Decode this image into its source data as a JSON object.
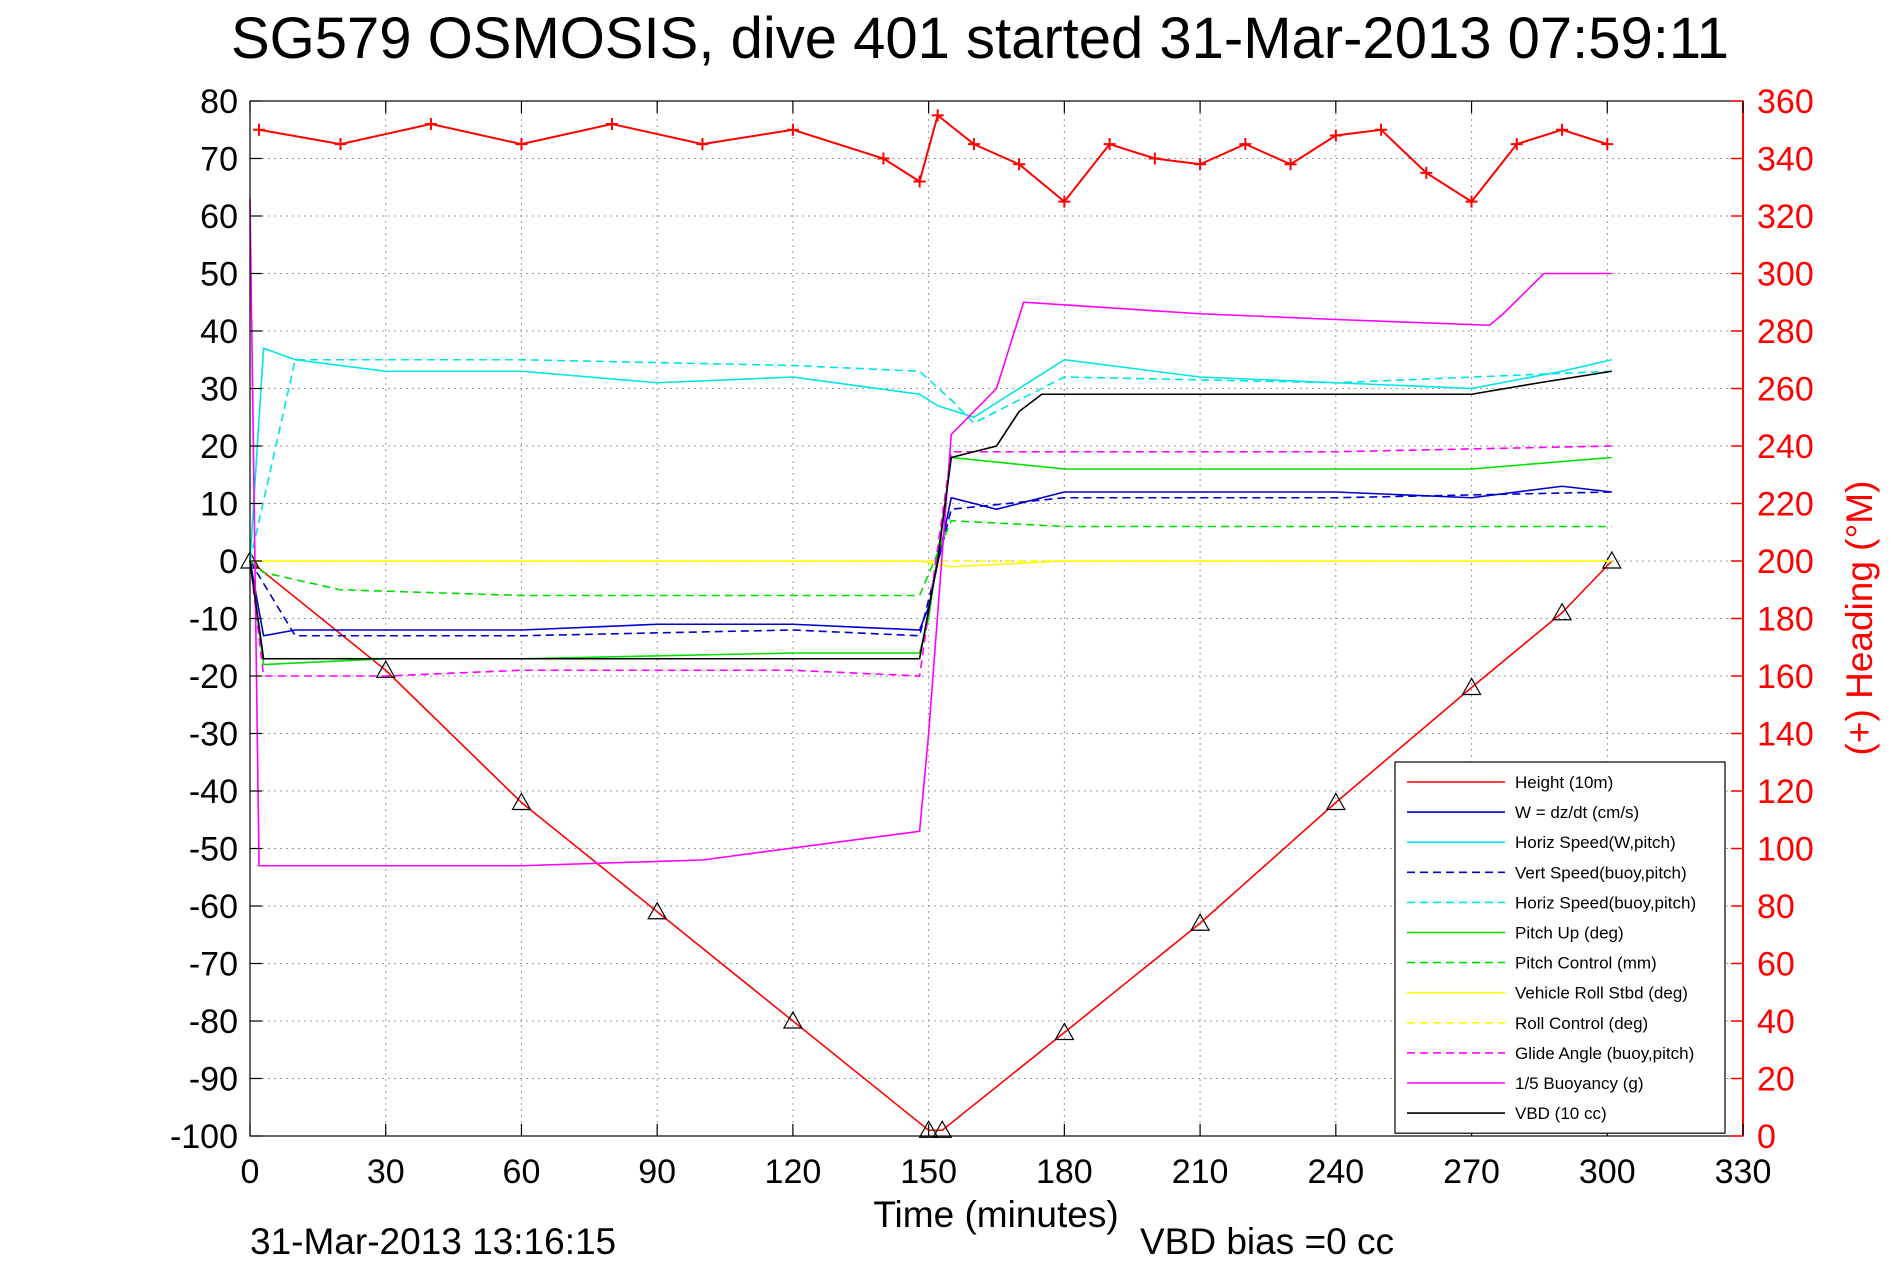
{
  "chart_data": {
    "type": "line",
    "title": "SG579 OSMOSIS, dive 401 started 31-Mar-2013 07:59:11",
    "xlabel": "Time (minutes)",
    "ylabel_right": "(+) Heading (°M)",
    "footer_left": "31-Mar-2013 13:16:15",
    "footer_right": "VBD bias =0 cc",
    "xlim": [
      0,
      330
    ],
    "ylim": [
      -100,
      80
    ],
    "ylim_right": [
      0,
      360
    ],
    "xticks": [
      "0",
      "30",
      "60",
      "90",
      "120",
      "150",
      "180",
      "210",
      "240",
      "270",
      "300",
      "330"
    ],
    "yticks": [
      "80",
      "70",
      "60",
      "50",
      "40",
      "30",
      "20",
      "10",
      "0",
      "-10",
      "-20",
      "-30",
      "-40",
      "-50",
      "-60",
      "-70",
      "-80",
      "-90",
      "-100"
    ],
    "yticks_right": [
      "360",
      "340",
      "320",
      "300",
      "280",
      "260",
      "240",
      "220",
      "200",
      "180",
      "160",
      "140",
      "120",
      "100",
      "80",
      "60",
      "40",
      "20",
      "0"
    ],
    "grid": true,
    "legend_position": "bottom-right",
    "series": [
      {
        "name": "Height (10m)",
        "color": "#ff0000",
        "style": "solid",
        "x": [
          0,
          30,
          60,
          90,
          120,
          150,
          153,
          180,
          210,
          240,
          270,
          290,
          301
        ],
        "y": [
          0,
          -19,
          -42,
          -61,
          -80,
          -99,
          -99,
          -82,
          -63,
          -42,
          -22,
          -9,
          0
        ]
      },
      {
        "name": "W = dz/dt (cm/s)",
        "color": "#0000cc",
        "style": "solid",
        "x": [
          0,
          3,
          10,
          30,
          60,
          90,
          120,
          148,
          150,
          155,
          165,
          180,
          210,
          240,
          270,
          290,
          301
        ],
        "y": [
          0,
          -13,
          -12,
          -12,
          -12,
          -11,
          -11,
          -12,
          -8,
          11,
          9,
          12,
          12,
          12,
          11,
          13,
          12
        ]
      },
      {
        "name": "Horiz Speed(W,pitch)",
        "color": "#00e5e5",
        "style": "solid",
        "x": [
          0,
          3,
          10,
          30,
          60,
          90,
          120,
          148,
          152,
          160,
          170,
          180,
          210,
          240,
          270,
          290,
          301
        ],
        "y": [
          0,
          37,
          35,
          33,
          33,
          31,
          32,
          29,
          27,
          25,
          30,
          35,
          32,
          31,
          30,
          33,
          35
        ]
      },
      {
        "name": "Vert Speed(buoy,pitch)",
        "color": "#0000cc",
        "style": "dashed",
        "x": [
          0,
          10,
          60,
          120,
          148,
          155,
          180,
          240,
          301
        ],
        "y": [
          0,
          -13,
          -13,
          -12,
          -13,
          9,
          11,
          11,
          12
        ]
      },
      {
        "name": "Horiz Speed(buoy,pitch)",
        "color": "#00e5e5",
        "style": "dashed",
        "x": [
          0,
          10,
          60,
          120,
          148,
          155,
          160,
          180,
          240,
          301
        ],
        "y": [
          0,
          35,
          35,
          34,
          33,
          28,
          24,
          32,
          31,
          33
        ]
      },
      {
        "name": "Pitch Up (deg)",
        "color": "#00e000",
        "style": "solid",
        "x": [
          0,
          3,
          30,
          60,
          120,
          148,
          150,
          155,
          180,
          210,
          240,
          270,
          301
        ],
        "y": [
          0,
          -18,
          -17,
          -17,
          -16,
          -16,
          -10,
          18,
          16,
          16,
          16,
          16,
          18
        ]
      },
      {
        "name": "Pitch Control (mm)",
        "color": "#00e000",
        "style": "dashed",
        "x": [
          0,
          3,
          20,
          60,
          120,
          148,
          155,
          180,
          240,
          301
        ],
        "y": [
          0,
          -2,
          -5,
          -6,
          -6,
          -6,
          7,
          6,
          6,
          6
        ]
      },
      {
        "name": "Vehicle Roll Stbd (deg)",
        "color": "#ffff00",
        "style": "solid",
        "x": [
          0,
          10,
          60,
          120,
          148,
          155,
          180,
          240,
          301
        ],
        "y": [
          0,
          0,
          0,
          0,
          0,
          -1,
          0,
          0,
          0
        ]
      },
      {
        "name": "Roll Control (deg)",
        "color": "#ffff00",
        "style": "dashed",
        "x": [
          0,
          10,
          60,
          120,
          148,
          155,
          180,
          240,
          301
        ],
        "y": [
          0,
          0,
          0,
          0,
          0,
          0,
          0,
          0,
          0
        ]
      },
      {
        "name": "Glide Angle (buoy,pitch)",
        "color": "#ff00ff",
        "style": "dashed",
        "x": [
          0,
          3,
          30,
          60,
          120,
          148,
          155,
          180,
          240,
          301
        ],
        "y": [
          0,
          -20,
          -20,
          -19,
          -19,
          -20,
          19,
          19,
          19,
          20
        ]
      },
      {
        "name": "1/5 Buoyancy (g)",
        "color": "#ff00ff",
        "style": "solid",
        "x": [
          0,
          2,
          30,
          60,
          100,
          148,
          150,
          155,
          165,
          171,
          210,
          240,
          274,
          277,
          286,
          301
        ],
        "y": [
          63,
          -53,
          -53,
          -53,
          -52,
          -47,
          -30,
          22,
          30,
          45,
          43,
          42,
          41,
          43,
          50,
          50
        ]
      },
      {
        "name": "VBD (10 cc)",
        "color": "#000000",
        "style": "solid",
        "x": [
          0,
          3,
          60,
          148,
          152,
          155,
          165,
          170,
          175,
          270,
          285,
          301
        ],
        "y": [
          0,
          -17,
          -17,
          -17,
          0,
          18,
          20,
          26,
          29,
          29,
          31,
          33
        ]
      },
      {
        "name": "Heading",
        "color": "#ff0000",
        "style": "marker-plus",
        "axis": "right",
        "x": [
          2,
          20,
          40,
          60,
          80,
          100,
          120,
          140,
          148,
          152,
          160,
          170,
          180,
          190,
          200,
          210,
          220,
          230,
          240,
          250,
          260,
          270,
          280,
          290,
          300
        ],
        "y": [
          350,
          345,
          352,
          345,
          352,
          345,
          350,
          340,
          332,
          355,
          345,
          338,
          325,
          345,
          340,
          338,
          345,
          338,
          348,
          350,
          335,
          325,
          345,
          350,
          345
        ]
      }
    ]
  }
}
